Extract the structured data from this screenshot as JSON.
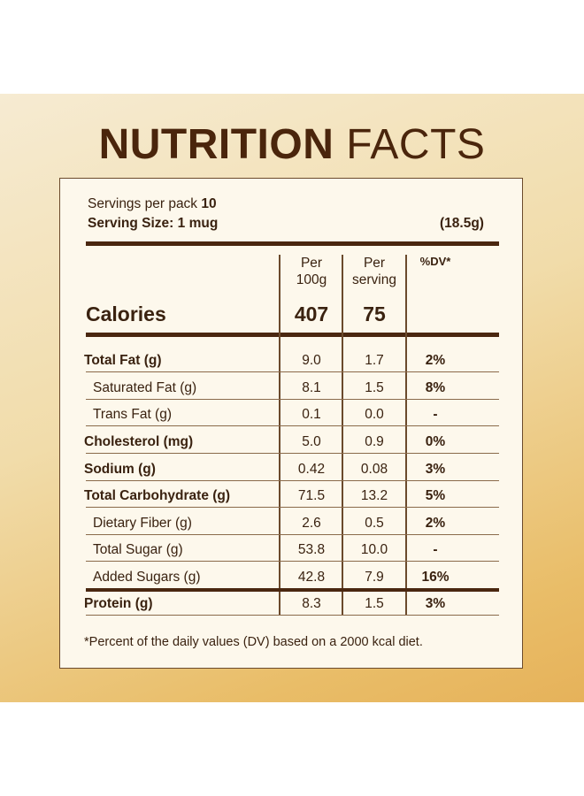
{
  "title": {
    "bold": "NUTRITION",
    "light": "FACTS"
  },
  "servings": {
    "label": "Servings per pack",
    "value": "10",
    "size_label": "Serving Size: 1 mug",
    "size_grams": "(18.5g)"
  },
  "headers": {
    "per100_line1": "Per",
    "per100_line2": "100g",
    "serving_line1": "Per",
    "serving_line2": "serving",
    "dv": "%DV*"
  },
  "calories": {
    "label": "Calories",
    "per100g": "407",
    "per_serving": "75"
  },
  "nutrients": [
    {
      "name": "Total Fat (g)",
      "per100g": "9.0",
      "per_serving": "1.7",
      "dv": "2%"
    },
    {
      "name": "Saturated Fat (g)",
      "per100g": "8.1",
      "per_serving": "1.5",
      "dv": "8%"
    },
    {
      "name": "Trans Fat (g)",
      "per100g": "0.1",
      "per_serving": "0.0",
      "dv": "-"
    },
    {
      "name": "Cholesterol (mg)",
      "per100g": "5.0",
      "per_serving": "0.9",
      "dv": "0%"
    },
    {
      "name": "Sodium (g)",
      "per100g": "0.42",
      "per_serving": "0.08",
      "dv": "3%"
    },
    {
      "name": "Total Carbohydrate (g)",
      "per100g": "71.5",
      "per_serving": "13.2",
      "dv": "5%"
    },
    {
      "name": "Dietary Fiber (g)",
      "per100g": "2.6",
      "per_serving": "0.5",
      "dv": "2%"
    },
    {
      "name": "Total Sugar (g)",
      "per100g": "53.8",
      "per_serving": "10.0",
      "dv": "-"
    },
    {
      "name": "Added Sugars (g)",
      "per100g": "42.8",
      "per_serving": "7.9",
      "dv": "16%"
    },
    {
      "name": "Protein (g)",
      "per100g": "8.3",
      "per_serving": "1.5",
      "dv": "3%"
    }
  ],
  "footnote": "*Percent of the daily values (DV) based on a 2000 kcal diet.",
  "colors": {
    "text": "#3a2210",
    "panel": "#fdf8ec",
    "gold": "#e9bd68"
  }
}
